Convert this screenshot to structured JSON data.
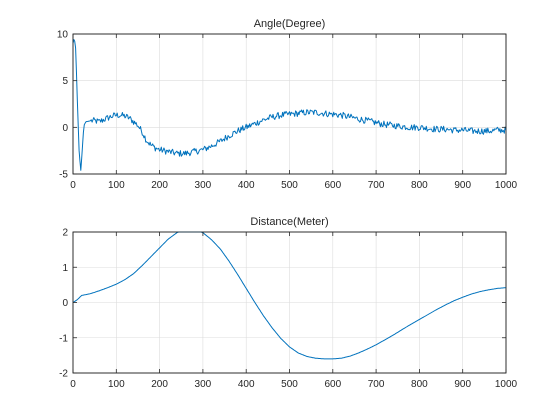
{
  "chart_data": [
    {
      "type": "line",
      "title": "Angle(Degree)",
      "xlabel": "",
      "ylabel": "",
      "xlim": [
        0,
        1000
      ],
      "ylim": [
        -5,
        10
      ],
      "xticks": [
        0,
        100,
        200,
        300,
        400,
        500,
        600,
        700,
        800,
        900,
        1000
      ],
      "yticks": [
        -5,
        0,
        5,
        10
      ],
      "grid": true,
      "line_color": "#0072BD",
      "series": [
        {
          "noise": 0.35,
          "x": [
            0,
            3,
            6,
            10,
            14,
            18,
            22,
            25,
            30,
            40,
            50,
            60,
            70,
            80,
            90,
            100,
            110,
            120,
            130,
            140,
            150,
            160,
            170,
            180,
            190,
            200,
            220,
            240,
            260,
            280,
            300,
            320,
            340,
            360,
            380,
            400,
            420,
            440,
            460,
            480,
            500,
            520,
            540,
            560,
            580,
            600,
            620,
            640,
            660,
            680,
            700,
            720,
            740,
            760,
            780,
            800,
            820,
            840,
            860,
            880,
            900,
            920,
            940,
            960,
            980,
            1000
          ],
          "y": [
            9.0,
            9.6,
            8.5,
            3.0,
            -2.5,
            -4.6,
            -2.0,
            0.2,
            0.6,
            0.7,
            0.7,
            0.6,
            0.8,
            1.0,
            1.2,
            1.3,
            1.3,
            1.2,
            1.0,
            0.6,
            0.2,
            -0.5,
            -1.4,
            -1.9,
            -2.2,
            -2.4,
            -2.6,
            -2.8,
            -2.8,
            -2.6,
            -2.4,
            -2.0,
            -1.5,
            -0.9,
            -0.4,
            0.0,
            0.4,
            0.8,
            1.1,
            1.3,
            1.4,
            1.5,
            1.6,
            1.6,
            1.5,
            1.4,
            1.3,
            1.1,
            0.9,
            0.7,
            0.5,
            0.3,
            0.2,
            0.1,
            0.0,
            0.0,
            -0.1,
            -0.2,
            -0.2,
            -0.3,
            -0.3,
            -0.4,
            -0.4,
            -0.4,
            -0.3,
            -0.3
          ]
        }
      ]
    },
    {
      "type": "line",
      "title": "Distance(Meter)",
      "xlabel": "",
      "ylabel": "",
      "xlim": [
        0,
        1000
      ],
      "ylim": [
        -2,
        2
      ],
      "xticks": [
        0,
        100,
        200,
        300,
        400,
        500,
        600,
        700,
        800,
        900,
        1000
      ],
      "yticks": [
        -2,
        -1,
        0,
        1,
        2
      ],
      "grid": true,
      "line_color": "#0072BD",
      "series": [
        {
          "noise": 0,
          "x": [
            0,
            10,
            20,
            40,
            60,
            80,
            100,
            120,
            140,
            160,
            180,
            200,
            220,
            240,
            260,
            280,
            300,
            320,
            340,
            360,
            380,
            400,
            420,
            440,
            460,
            480,
            500,
            520,
            540,
            560,
            580,
            600,
            620,
            640,
            660,
            680,
            700,
            720,
            740,
            760,
            780,
            800,
            820,
            840,
            860,
            880,
            900,
            920,
            940,
            960,
            980,
            1000
          ],
          "y": [
            0.0,
            0.08,
            0.2,
            0.25,
            0.33,
            0.42,
            0.52,
            0.65,
            0.82,
            1.05,
            1.3,
            1.55,
            1.8,
            1.98,
            2.1,
            2.08,
            1.98,
            1.78,
            1.52,
            1.18,
            0.8,
            0.4,
            0.0,
            -0.38,
            -0.72,
            -1.02,
            -1.26,
            -1.43,
            -1.53,
            -1.58,
            -1.6,
            -1.6,
            -1.58,
            -1.52,
            -1.43,
            -1.32,
            -1.2,
            -1.06,
            -0.92,
            -0.77,
            -0.62,
            -0.48,
            -0.34,
            -0.2,
            -0.07,
            0.05,
            0.15,
            0.24,
            0.31,
            0.36,
            0.4,
            0.42
          ]
        }
      ]
    }
  ]
}
